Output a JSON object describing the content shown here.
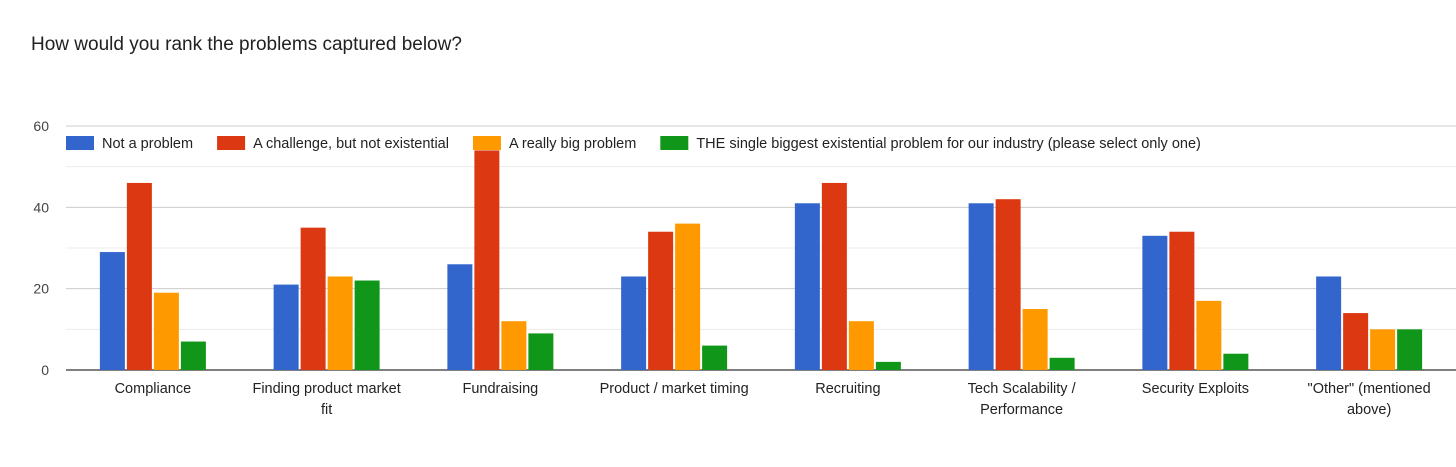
{
  "chart_data": {
    "type": "bar",
    "title": "How would you rank the problems captured below?",
    "xlabel": "",
    "ylabel": "",
    "ylim": [
      0,
      60
    ],
    "yticks": [
      "0",
      "20",
      "40",
      "60"
    ],
    "grid": true,
    "legend_position": "top",
    "categories": [
      "Compliance",
      "Finding product market fit",
      "Fundraising",
      "Product / market timing",
      "Recruiting",
      "Tech Scalability / Performance",
      "Security Exploits",
      "\"Other\" (mentioned above)"
    ],
    "category_lines": [
      [
        "Compliance"
      ],
      [
        "Finding product market",
        "fit"
      ],
      [
        "Fundraising"
      ],
      [
        "Product / market timing"
      ],
      [
        "Recruiting"
      ],
      [
        "Tech Scalability /",
        "Performance"
      ],
      [
        "Security Exploits"
      ],
      [
        "\"Other\" (mentioned",
        "above)"
      ]
    ],
    "series": [
      {
        "name": "Not a problem",
        "color": "#3366cc",
        "values": [
          29,
          21,
          26,
          23,
          41,
          41,
          33,
          23
        ]
      },
      {
        "name": "A challenge, but not existential",
        "color": "#dc3912",
        "values": [
          46,
          35,
          54,
          34,
          46,
          42,
          34,
          14
        ]
      },
      {
        "name": "A really big problem",
        "color": "#ff9900",
        "values": [
          19,
          23,
          12,
          36,
          12,
          15,
          17,
          10
        ]
      },
      {
        "name": "THE single biggest existential problem for our industry (please select only one)",
        "color": "#109618",
        "values": [
          7,
          22,
          9,
          6,
          2,
          3,
          4,
          10
        ]
      }
    ]
  }
}
